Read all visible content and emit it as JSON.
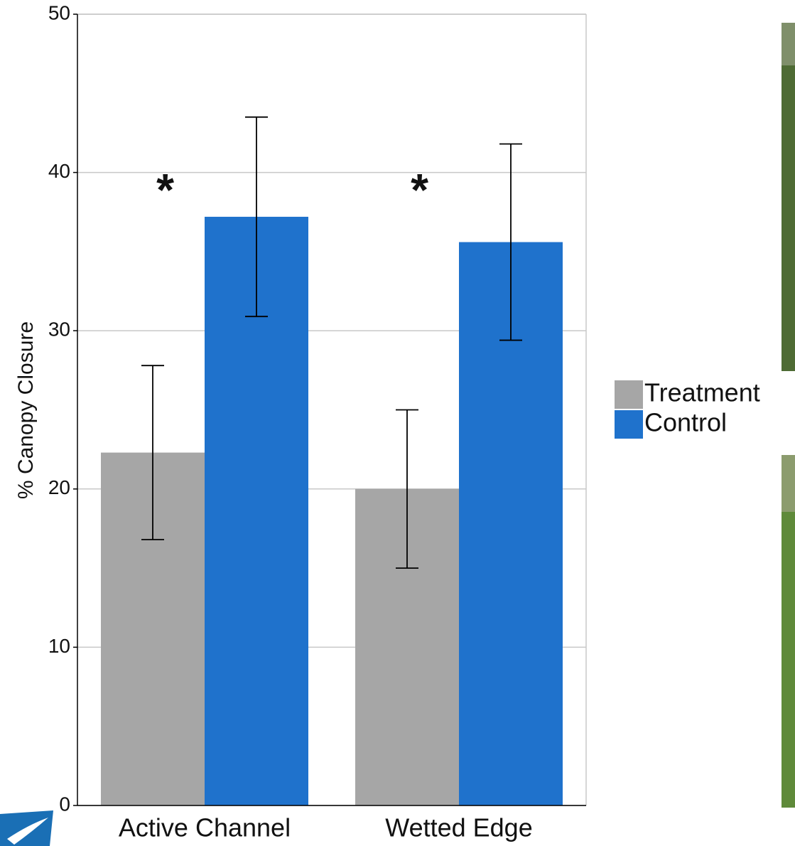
{
  "chart_data": {
    "type": "bar",
    "y_label": "% Canopy Closure",
    "categories": [
      "Active Channel",
      "Wetted Edge"
    ],
    "series": [
      {
        "name": "Treatment",
        "color": "#a6a6a6",
        "values": [
          22.3,
          20.0
        ],
        "errors": [
          5.5,
          5.0
        ]
      },
      {
        "name": "Control",
        "color": "#1f72cc",
        "values": [
          37.2,
          35.6
        ],
        "errors": [
          6.3,
          6.2
        ]
      }
    ],
    "annotations": [
      "*",
      "*"
    ],
    "ylim": [
      0,
      50
    ],
    "yticks": [
      0,
      10,
      20,
      30,
      40,
      50
    ],
    "grid": true,
    "legend": "right"
  }
}
